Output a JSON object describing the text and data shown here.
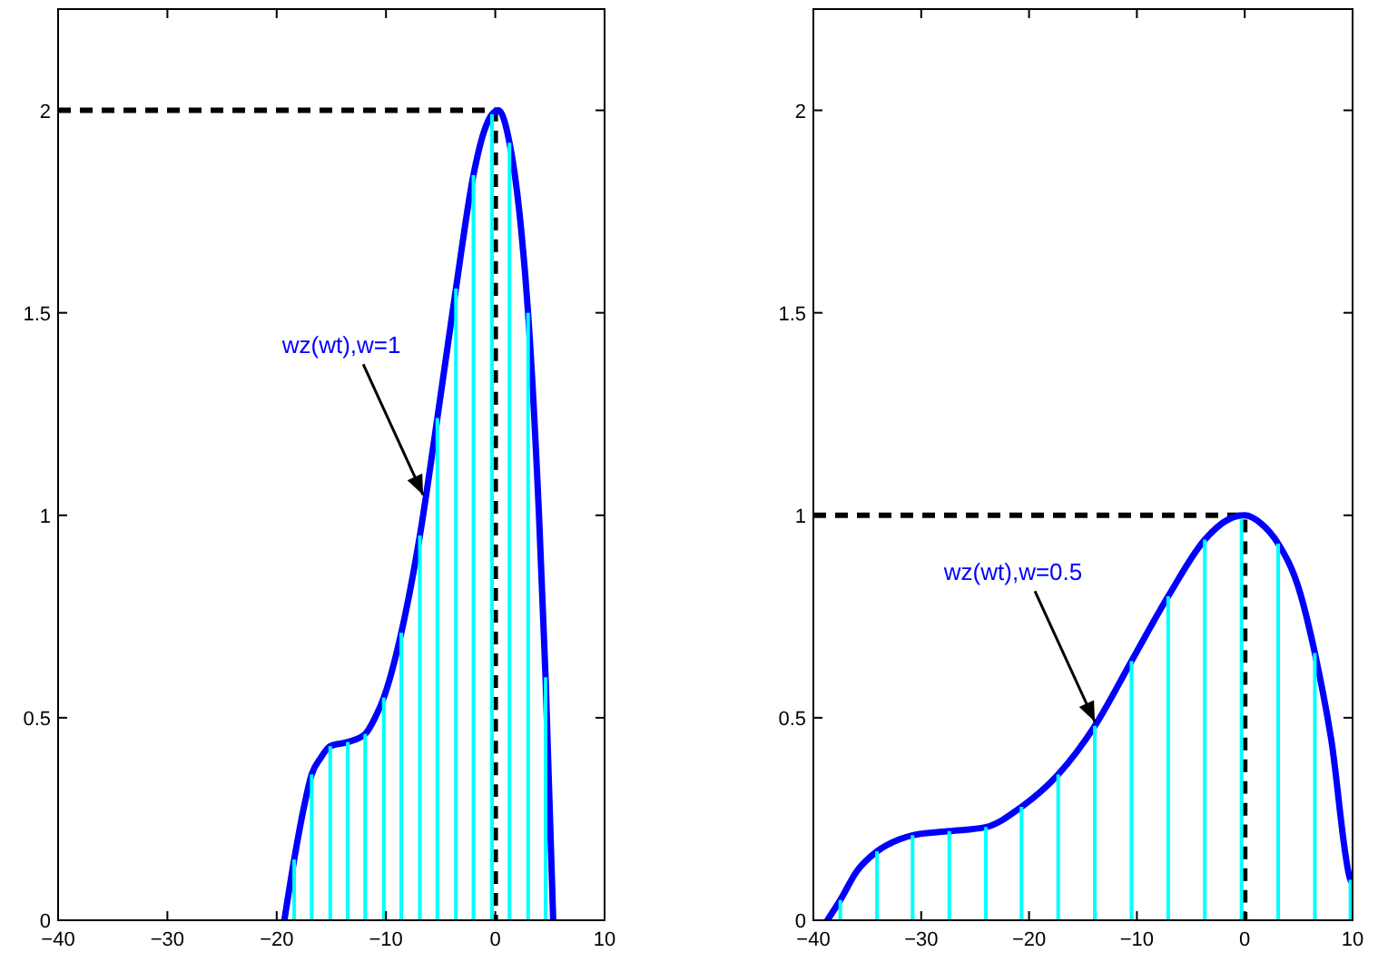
{
  "chart_data": [
    {
      "type": "line",
      "xlim": [
        -40,
        10
      ],
      "ylim": [
        0,
        2.25
      ],
      "xticks": [
        -40,
        -30,
        -20,
        -10,
        0,
        10
      ],
      "yticks": [
        0,
        0.5,
        1,
        1.5,
        2
      ],
      "grid": false,
      "marker": "none",
      "series": [
        {
          "type": "bar",
          "color": "#00ffff",
          "x": [
            -18.4,
            -16.8,
            -15.1,
            -13.5,
            -11.9,
            -10.2,
            -8.6,
            -6.9,
            -5.3,
            -3.6,
            -2.0,
            -0.3,
            1.3,
            3.0,
            4.6
          ],
          "values": [
            0.15,
            0.36,
            0.43,
            0.44,
            0.46,
            0.55,
            0.71,
            0.95,
            1.24,
            1.56,
            1.84,
            1.99,
            1.92,
            1.5,
            0.6
          ]
        },
        {
          "color": "#0000ff",
          "x": [
            -19.3,
            -18.4,
            -17.5,
            -16.8,
            -16,
            -15.1,
            -13.5,
            -11.9,
            -11,
            -10.2,
            -8.6,
            -6.9,
            -5.3,
            -3.6,
            -2.0,
            -1,
            -0.3,
            0.3,
            1.3,
            2.2,
            3.0,
            4.0,
            4.6,
            5.3
          ],
          "values": [
            0,
            0.15,
            0.28,
            0.36,
            0.4,
            0.43,
            0.44,
            0.46,
            0.5,
            0.55,
            0.71,
            0.95,
            1.24,
            1.56,
            1.84,
            1.95,
            1.99,
            2.0,
            1.92,
            1.75,
            1.5,
            1.0,
            0.6,
            0
          ]
        },
        {
          "color": "#000000",
          "line_style": "dashed",
          "x": [
            -40,
            0,
            0
          ],
          "values": [
            2,
            2,
            0
          ]
        }
      ],
      "annotations": [
        {
          "text": "wz(wt),w=1",
          "x": -6.6,
          "y": 1.05
        }
      ]
    },
    {
      "type": "line",
      "xlim": [
        -40,
        10
      ],
      "ylim": [
        0,
        2.25
      ],
      "xticks": [
        -40,
        -30,
        -20,
        -10,
        0,
        10
      ],
      "yticks": [
        0,
        0.5,
        1,
        1.5,
        2
      ],
      "grid": false,
      "marker": "none",
      "series": [
        {
          "type": "bar",
          "color": "#00ffff",
          "x": [
            -37.5,
            -34.1,
            -30.8,
            -27.4,
            -24.0,
            -20.7,
            -17.3,
            -13.9,
            -10.5,
            -7.1,
            -3.7,
            -0.3,
            3.1,
            6.5,
            9.8
          ],
          "values": [
            0.05,
            0.17,
            0.21,
            0.22,
            0.23,
            0.28,
            0.36,
            0.48,
            0.64,
            0.8,
            0.94,
            0.99,
            0.93,
            0.66,
            0.1
          ]
        },
        {
          "color": "#0000ff",
          "x": [
            -38.7,
            -37.5,
            -36,
            -34.1,
            -32,
            -30.8,
            -27.4,
            -24,
            -20.7,
            -17.3,
            -13.9,
            -10.5,
            -7.1,
            -3.7,
            -1.5,
            0,
            1.5,
            3.1,
            5,
            6.5,
            8,
            9.8,
            10
          ],
          "values": [
            0,
            0.05,
            0.12,
            0.17,
            0.2,
            0.21,
            0.22,
            0.23,
            0.28,
            0.36,
            0.48,
            0.64,
            0.8,
            0.94,
            0.99,
            1.0,
            0.98,
            0.93,
            0.82,
            0.66,
            0.45,
            0.1,
            0.09
          ]
        },
        {
          "color": "#000000",
          "line_style": "dashed",
          "x": [
            -40,
            0,
            0
          ],
          "values": [
            1,
            1,
            0
          ]
        }
      ],
      "annotations": [
        {
          "text": "wz(wt),w=0.5",
          "x": -13.9,
          "y": 0.49
        }
      ]
    }
  ]
}
